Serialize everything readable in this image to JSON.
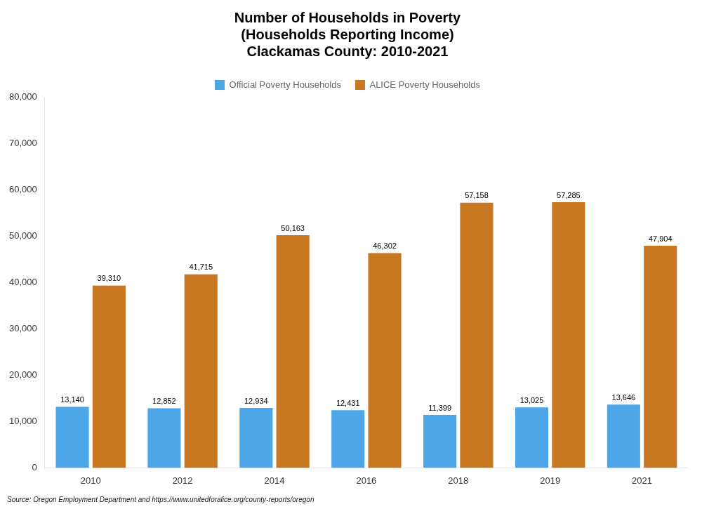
{
  "chart_data": {
    "type": "bar",
    "title": "Number of Households in Poverty\n(Households Reporting Income)\nClackamas County: 2010-2021",
    "categories": [
      "2010",
      "2012",
      "2014",
      "2016",
      "2018",
      "2019",
      "2021"
    ],
    "series": [
      {
        "name": "Official Poverty Households",
        "color": "#4da6e8",
        "values": [
          13140,
          12852,
          12934,
          12431,
          11399,
          13025,
          13646
        ],
        "value_labels": [
          "13,140",
          "12,852",
          "12,934",
          "12,431",
          "11,399",
          "13,025",
          "13,646"
        ]
      },
      {
        "name": "ALICE Poverty Households",
        "color": "#c87820",
        "values": [
          39310,
          41715,
          50163,
          46302,
          57158,
          57285,
          47904
        ],
        "value_labels": [
          "39,310",
          "41,715",
          "50,163",
          "46,302",
          "57,158",
          "57,285",
          "47,904"
        ]
      }
    ],
    "ylim": [
      0,
      80000
    ],
    "yticks": [
      0,
      {
        "value": 10000,
        "label": "10,000"
      },
      {
        "value": 20000,
        "label": "20,000"
      },
      {
        "value": 30000,
        "label": "30,000"
      },
      {
        "value": 40000,
        "label": "40,000"
      },
      {
        "value": 50000,
        "label": "50,000"
      },
      {
        "value": 60000,
        "label": "60,000"
      },
      {
        "value": 70000,
        "label": "70,000"
      },
      {
        "value": 80000,
        "label": "80,000"
      }
    ],
    "grid": false,
    "legend": "top",
    "data_labels": true,
    "annotations": [
      "Source: Oregon Employment Department and https://www.unitedforalice.org/county-reports/oregon"
    ]
  }
}
